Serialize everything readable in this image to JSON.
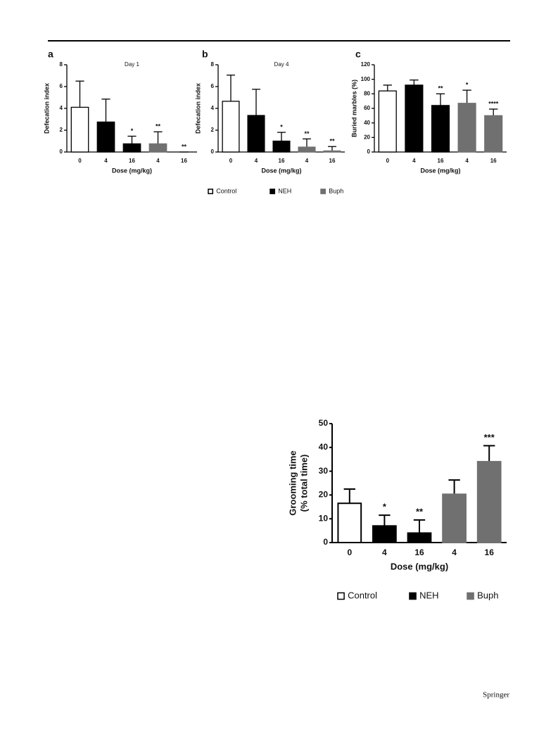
{
  "chart_data": [
    {
      "type": "bar",
      "panel": "a",
      "title": "Day 1",
      "ylabel": [
        "Defecation index"
      ],
      "xlabel": "Dose (mg/kg)",
      "categories": [
        "0",
        "4",
        "16",
        "4",
        "16"
      ],
      "values": [
        4.1,
        2.75,
        0.75,
        0.75,
        0
      ],
      "errors": [
        2.4,
        2.1,
        0.7,
        1.1,
        0
      ],
      "annotations": [
        null,
        null,
        "*",
        "**",
        "**"
      ],
      "colors": [
        "#ffffff",
        "#000000",
        "#000000",
        "#707070",
        "#707070"
      ],
      "ylim": [
        0,
        8
      ],
      "yticks": [
        0,
        2,
        4,
        6,
        8
      ]
    },
    {
      "type": "bar",
      "panel": "b",
      "title": "Day 4",
      "ylabel": [
        "Defecation index"
      ],
      "xlabel": "Dose (mg/kg)",
      "categories": [
        "0",
        "4",
        "16",
        "4",
        "16"
      ],
      "values": [
        4.65,
        3.35,
        1.0,
        0.45,
        0.1
      ],
      "errors": [
        2.4,
        2.4,
        0.8,
        0.75,
        0.4
      ],
      "annotations": [
        null,
        null,
        "*",
        "**",
        "**"
      ],
      "colors": [
        "#ffffff",
        "#000000",
        "#000000",
        "#707070",
        "#707070"
      ],
      "ylim": [
        0,
        8
      ],
      "yticks": [
        0,
        2,
        4,
        6,
        8
      ]
    },
    {
      "type": "bar",
      "panel": "c",
      "ylabel": [
        "Buried marbles (%)"
      ],
      "xlabel": "Dose (mg/kg)",
      "categories": [
        "0",
        "4",
        "16",
        "4",
        "16"
      ],
      "values": [
        84,
        92,
        64,
        67,
        50
      ],
      "errors": [
        8,
        7,
        16,
        18,
        9
      ],
      "annotations": [
        null,
        null,
        "**",
        "*",
        "****"
      ],
      "colors": [
        "#ffffff",
        "#000000",
        "#000000",
        "#707070",
        "#707070"
      ],
      "ylim": [
        0,
        120
      ],
      "yticks": [
        0,
        20,
        40,
        60,
        80,
        100,
        120
      ]
    },
    {
      "type": "bar",
      "ylabel": [
        "Grooming time",
        "(% total time)"
      ],
      "xlabel": "Dose (mg/kg)",
      "categories": [
        "0",
        "4",
        "16",
        "4",
        "16"
      ],
      "values": [
        16.5,
        7,
        4,
        20.3,
        34
      ],
      "errors": [
        6,
        4.5,
        5.5,
        6,
        6.7
      ],
      "annotations": [
        null,
        "*",
        "**",
        null,
        "***"
      ],
      "colors": [
        "#ffffff",
        "#000000",
        "#000000",
        "#707070",
        "#707070"
      ],
      "ylim": [
        0,
        50
      ],
      "yticks": [
        0,
        10,
        20,
        30,
        40,
        50
      ]
    }
  ],
  "legend": [
    {
      "name": "Control",
      "color": "#ffffff"
    },
    {
      "name": "NEH",
      "color": "#000000"
    },
    {
      "name": "Buph",
      "color": "#707070"
    }
  ],
  "footer": "Springer"
}
